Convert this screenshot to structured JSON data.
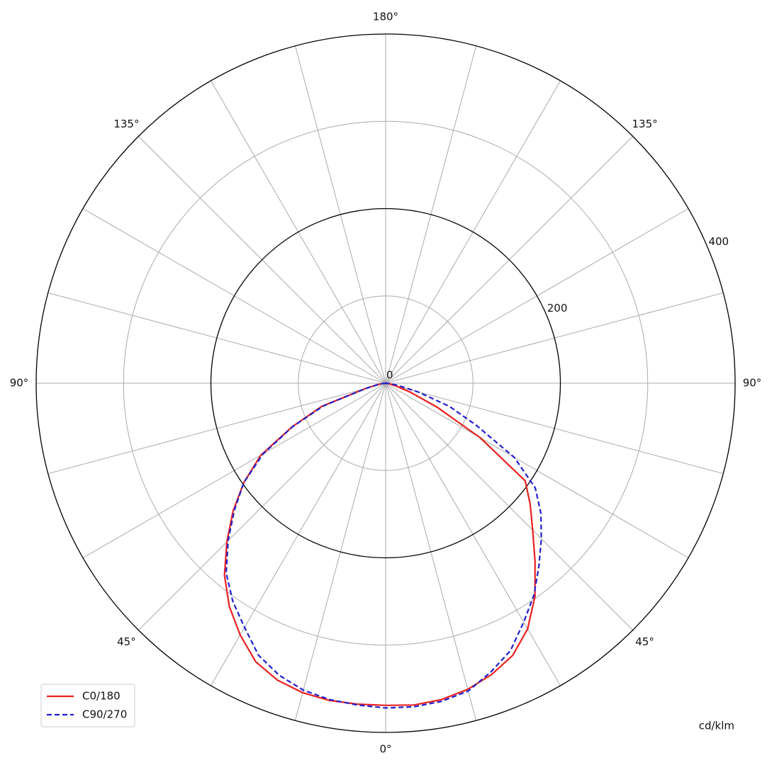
{
  "chart_data": {
    "type": "polar",
    "unit_label": "cd/klm",
    "x": [
      -90,
      -85,
      -80,
      -75,
      -70,
      -65,
      -60,
      -55,
      -50,
      -45,
      -40,
      -35,
      -30,
      -25,
      -20,
      -15,
      -10,
      -5,
      0,
      5,
      10,
      15,
      20,
      25,
      30,
      35,
      40,
      45,
      50,
      55,
      60,
      65,
      70,
      75,
      80,
      85,
      90
    ],
    "series": [
      {
        "name": "C0/180",
        "color": "#e8201f",
        "dash": false,
        "values": [
          0,
          3,
          10,
          25,
          78,
          118,
          165,
          198,
          228,
          257,
          287,
          312,
          333,
          352,
          362,
          367,
          369,
          369,
          369,
          370,
          368,
          363,
          355,
          344,
          325,
          298,
          266,
          238,
          216,
          195,
          125,
          65,
          30,
          12,
          5,
          2,
          0
        ]
      },
      {
        "name": "C90/270",
        "color": "#1f1fd0",
        "dash": true,
        "values": [
          0,
          3,
          9,
          24,
          75,
          117,
          162,
          198,
          226,
          255,
          284,
          305,
          323,
          344,
          356,
          364,
          368,
          370,
          372,
          372,
          370,
          365,
          352,
          338,
          316,
          296,
          273,
          252,
          232,
          209,
          170,
          115,
          78,
          38,
          14,
          4,
          0
        ]
      }
    ],
    "rlim": [
      0,
      400
    ],
    "rticks": [
      0,
      200,
      400
    ],
    "rminor": [
      100,
      300
    ],
    "rlabel_angle": 112.5,
    "thetaticks": [
      {
        "value": 0,
        "label": "0°"
      },
      {
        "value": 45,
        "label": "45°"
      },
      {
        "value": 90,
        "label": "90°"
      },
      {
        "value": 135,
        "label": "135°"
      },
      {
        "value": 180,
        "label": "180°"
      },
      {
        "value": -135,
        "label": "135°"
      },
      {
        "value": -90,
        "label": "90°"
      },
      {
        "value": -45,
        "label": "45°"
      }
    ],
    "thetagrid": [
      -165,
      -150,
      -135,
      -120,
      -105,
      -90,
      -75,
      -60,
      -45,
      -30,
      -15,
      0,
      15,
      30,
      45,
      60,
      75,
      90,
      105,
      120,
      135,
      150,
      165,
      180
    ],
    "legend": "lower left"
  }
}
